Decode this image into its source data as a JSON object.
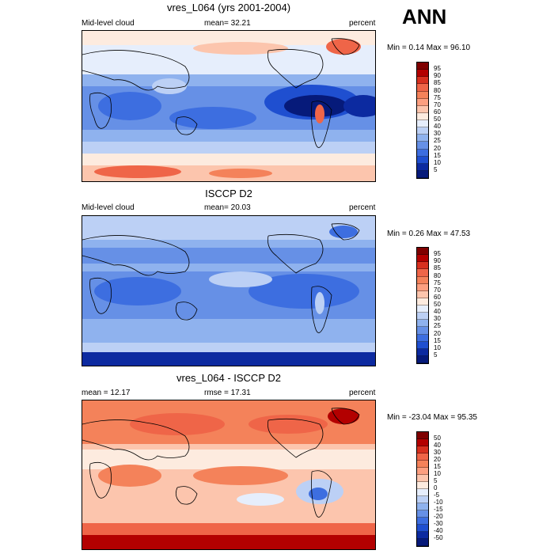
{
  "season": "ANN",
  "panels": [
    {
      "title": "vres_L064 (yrs 2001-2004)",
      "left_label": "Mid-level cloud",
      "center_label": "mean=  32.21",
      "right_label": "percent",
      "minmax": "Min =   0.14 Max =  96.10",
      "colorbar_labels": [
        "95",
        "90",
        "85",
        "80",
        "75",
        "70",
        "60",
        "50",
        "40",
        "30",
        "25",
        "20",
        "15",
        "10",
        "5"
      ]
    },
    {
      "title": "ISCCP D2",
      "left_label": "Mid-level cloud",
      "center_label": "mean=  20.03",
      "right_label": "percent",
      "minmax": "Min =   0.26 Max =  47.53",
      "colorbar_labels": [
        "95",
        "90",
        "85",
        "80",
        "75",
        "70",
        "60",
        "50",
        "40",
        "30",
        "25",
        "20",
        "15",
        "10",
        "5"
      ]
    },
    {
      "title": "vres_L064 - ISCCP D2",
      "left_label": "mean =  12.17",
      "center_label": "rmse =  17.31",
      "right_label": "percent",
      "minmax": "Min = -23.04 Max =  95.35",
      "colorbar_labels": [
        "50",
        "40",
        "30",
        "20",
        "15",
        "10",
        "5",
        "0",
        "-5",
        "-10",
        "-15",
        "-20",
        "-30",
        "-40",
        "-50"
      ]
    }
  ],
  "colors": {
    "abs_scale": [
      "#7f0000",
      "#b30000",
      "#d7301f",
      "#ef6548",
      "#f4825a",
      "#fc9f80",
      "#fcc5ad",
      "#fdebdf",
      "#e6eefc",
      "#bcd0f5",
      "#8fb2ee",
      "#6690e6",
      "#3d6ee0",
      "#1f4fd0",
      "#0c2aa0",
      "#061a7a"
    ],
    "diff_scale": [
      "#7f0000",
      "#b30000",
      "#d7301f",
      "#ef6548",
      "#f4825a",
      "#fc9f80",
      "#fcc5ad",
      "#fdebdf",
      "#e6eefc",
      "#bcd0f5",
      "#8fb2ee",
      "#6690e6",
      "#3d6ee0",
      "#1f4fd0",
      "#0c2aa0",
      "#061a7a"
    ]
  }
}
